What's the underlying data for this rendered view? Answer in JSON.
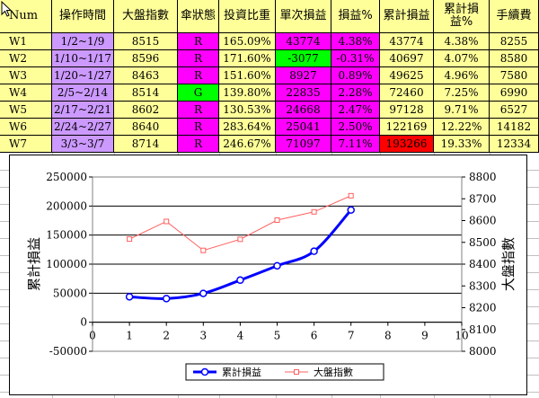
{
  "colors": {
    "yellow": "#ffff99",
    "purple": "#cc99ff",
    "magenta": "#ff00ff",
    "green": "#00ff00",
    "red": "#ff0000",
    "white": "#ffffff",
    "blue_series": "#0000ff",
    "red_series": "#ff6060"
  },
  "headers": [
    "Num",
    "操作時間",
    "大盤指數",
    "傘狀態",
    "投資比重",
    "單次損益",
    "損益%",
    "累計損益",
    "累計損\n益%",
    "手續費"
  ],
  "rows": [
    {
      "num": "W1",
      "period": "1/2~1/9",
      "index": "8515",
      "state": "R",
      "weight": "165.09%",
      "pnl": "43774",
      "pnl_pct": "4.38%",
      "cum": "43774",
      "cum_pct": "4.38%",
      "fee": "8255"
    },
    {
      "num": "W2",
      "period": "1/10~1/17",
      "index": "8596",
      "state": "R",
      "weight": "171.60%",
      "pnl": "-3077",
      "pnl_pct": "-0.31%",
      "cum": "40697",
      "cum_pct": "4.07%",
      "fee": "8580"
    },
    {
      "num": "W3",
      "period": "1/20~1/27",
      "index": "8463",
      "state": "R",
      "weight": "151.60%",
      "pnl": "8927",
      "pnl_pct": "0.89%",
      "cum": "49625",
      "cum_pct": "4.96%",
      "fee": "7580"
    },
    {
      "num": "W4",
      "period": "2/5~2/14",
      "index": "8514",
      "state": "G",
      "weight": "139.80%",
      "pnl": "22835",
      "pnl_pct": "2.28%",
      "cum": "72460",
      "cum_pct": "7.25%",
      "fee": "6990"
    },
    {
      "num": "W5",
      "period": "2/17~2/21",
      "index": "8602",
      "state": "R",
      "weight": "130.53%",
      "pnl": "24668",
      "pnl_pct": "2.47%",
      "cum": "97128",
      "cum_pct": "9.71%",
      "fee": "6527"
    },
    {
      "num": "W6",
      "period": "2/24~2/27",
      "index": "8640",
      "state": "R",
      "weight": "283.64%",
      "pnl": "25041",
      "pnl_pct": "2.50%",
      "cum": "122169",
      "cum_pct": "12.22%",
      "fee": "14182"
    },
    {
      "num": "W7",
      "period": "3/3~3/7",
      "index": "8714",
      "state": "R",
      "weight": "246.67%",
      "pnl": "71097",
      "pnl_pct": "7.11%",
      "cum": "193266",
      "cum_pct": "19.33%",
      "fee": "12334"
    }
  ],
  "chart_data": {
    "type": "line",
    "x": [
      1,
      2,
      3,
      4,
      5,
      6,
      7
    ],
    "series": [
      {
        "name": "累計損益",
        "axis": "left",
        "values": [
          43774,
          40697,
          49625,
          72460,
          97128,
          122169,
          193266
        ]
      },
      {
        "name": "大盤指數",
        "axis": "right",
        "values": [
          8515,
          8596,
          8463,
          8514,
          8602,
          8640,
          8714
        ]
      }
    ],
    "ylabel": "累計損益",
    "y2label": "大盤指數",
    "xlim": [
      0,
      10
    ],
    "ylim": [
      -50000,
      250000
    ],
    "y2lim": [
      8000,
      8800
    ],
    "xticks": [
      "0",
      "1",
      "2",
      "3",
      "4",
      "5",
      "6",
      "7",
      "8",
      "9",
      "10"
    ],
    "yticks": [
      "250000",
      "200000",
      "150000",
      "100000",
      "50000",
      "0",
      "-50000"
    ],
    "y2ticks": [
      "8800",
      "8700",
      "8600",
      "8500",
      "8400",
      "8300",
      "8200",
      "8100",
      "8000"
    ],
    "grid": true,
    "legend": "bottom-center"
  }
}
